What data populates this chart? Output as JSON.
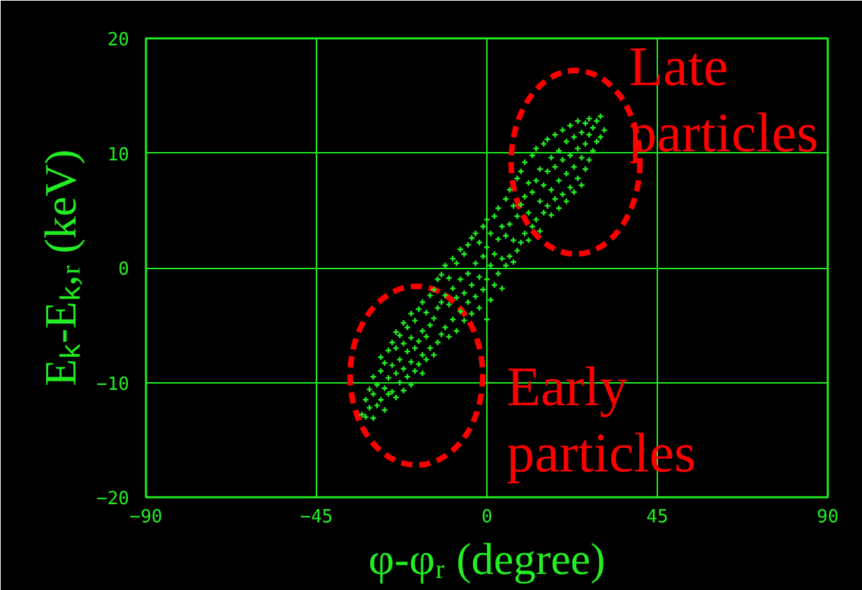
{
  "chart_data": {
    "type": "scatter",
    "xlabel": "φ-φᵣ (degree)",
    "ylabel": "Eₖ-Eₖ,ᵣ (keV)",
    "xlim": [
      -90,
      90
    ],
    "ylim": [
      -20,
      20
    ],
    "xticks": [
      -90,
      -45,
      0,
      45,
      90
    ],
    "yticks": [
      -20,
      -10,
      0,
      10,
      20
    ],
    "grid": true,
    "marker": "cross",
    "series": [
      {
        "color": "#22ee22",
        "x": [
          -33,
          -32,
          -32,
          -31,
          -31,
          -30,
          -30,
          -30,
          -29,
          -29,
          -28,
          -28,
          -28,
          -27,
          -27,
          -27,
          -26,
          -26,
          -26,
          -25,
          -25,
          -25,
          -24,
          -24,
          -24,
          -24,
          -23,
          -23,
          -23,
          -22,
          -22,
          -22,
          -22,
          -21,
          -21,
          -21,
          -20,
          -20,
          -20,
          -20,
          -19,
          -19,
          -19,
          -18,
          -18,
          -18,
          -17,
          -17,
          -17,
          -17,
          -16,
          -16,
          -16,
          -15,
          -15,
          -15,
          -14,
          -14,
          -14,
          -13,
          -13,
          -13,
          -12,
          -12,
          -12,
          -11,
          -11,
          -11,
          -10,
          -10,
          -10,
          -9,
          -9,
          -9,
          -8,
          -8,
          -8,
          -7,
          -7,
          -7,
          -6,
          -6,
          -6,
          -5,
          -5,
          -5,
          -4,
          -4,
          -4,
          -3,
          -3,
          -3,
          -2,
          -2,
          -2,
          -1,
          -1,
          -1,
          0,
          0,
          0,
          0,
          1,
          1,
          1,
          2,
          2,
          2,
          3,
          3,
          3,
          4,
          4,
          4,
          5,
          5,
          5,
          6,
          6,
          6,
          7,
          7,
          7,
          8,
          8,
          8,
          9,
          9,
          9,
          10,
          10,
          10,
          11,
          11,
          11,
          12,
          12,
          12,
          13,
          13,
          13,
          14,
          14,
          14,
          15,
          15,
          15,
          16,
          16,
          16,
          17,
          17,
          17,
          18,
          18,
          18,
          19,
          19,
          19,
          20,
          20,
          20,
          21,
          21,
          21,
          22,
          22,
          22,
          23,
          23,
          23,
          24,
          24,
          24,
          25,
          25,
          25,
          26,
          26,
          26,
          27,
          27,
          27,
          28,
          28,
          29,
          29,
          30,
          30,
          31
        ],
        "values": [
          -12.8,
          -13.0,
          -11.5,
          -12.2,
          -10.6,
          -13.1,
          -11.0,
          -9.5,
          -12.0,
          -10.2,
          -11.5,
          -9.0,
          -7.8,
          -12.4,
          -10.5,
          -8.3,
          -11.0,
          -9.6,
          -7.2,
          -10.8,
          -8.5,
          -6.5,
          -11.3,
          -9.2,
          -7.0,
          -5.6,
          -10.0,
          -8.0,
          -5.9,
          -10.7,
          -8.8,
          -6.6,
          -4.8,
          -9.5,
          -7.3,
          -5.2,
          -10.2,
          -8.2,
          -6.1,
          -4.0,
          -9.0,
          -7.0,
          -4.6,
          -8.4,
          -6.4,
          -3.6,
          -9.2,
          -7.6,
          -5.5,
          -3.0,
          -8.0,
          -6.0,
          -3.9,
          -7.0,
          -5.0,
          -2.4,
          -7.6,
          -4.4,
          -1.9,
          -6.5,
          -3.5,
          -1.0,
          -5.8,
          -3.0,
          -0.6,
          -5.2,
          -2.4,
          0.2,
          -6.0,
          -3.2,
          -0.9,
          -4.5,
          -1.8,
          0.8,
          -5.5,
          -2.6,
          0.4,
          -3.8,
          -1.0,
          1.6,
          -4.6,
          -2.2,
          1.2,
          -3.0,
          -0.5,
          2.0,
          -4.0,
          -1.5,
          2.6,
          -2.5,
          0.4,
          3.0,
          -3.5,
          -0.8,
          2.2,
          -1.9,
          1.0,
          3.6,
          -4.5,
          -1.0,
          1.8,
          4.2,
          -2.8,
          0.2,
          3.0,
          -1.5,
          1.2,
          4.5,
          -0.5,
          2.5,
          5.2,
          -1.8,
          0.8,
          3.6,
          0.2,
          2.8,
          6.0,
          1.0,
          3.8,
          6.8,
          0.5,
          2.4,
          5.4,
          1.5,
          4.5,
          7.8,
          2.2,
          5.5,
          8.4,
          3.0,
          6.2,
          9.2,
          2.4,
          4.8,
          7.4,
          3.6,
          6.6,
          9.8,
          4.2,
          7.6,
          10.4,
          3.2,
          5.8,
          8.6,
          4.8,
          7.2,
          10.8,
          5.4,
          8.4,
          11.2,
          4.6,
          6.8,
          9.6,
          6.0,
          8.8,
          11.6,
          5.2,
          7.6,
          10.2,
          6.4,
          9.4,
          12.0,
          5.8,
          8.2,
          11.0,
          7.0,
          9.8,
          12.4,
          6.6,
          8.8,
          11.4,
          7.8,
          10.4,
          12.8,
          7.2,
          9.6,
          11.8,
          8.6,
          10.8,
          12.6,
          9.4,
          11.6,
          13.0,
          10.2,
          12.2,
          11.0,
          12.8,
          11.4,
          13.2,
          12.0
        ]
      }
    ],
    "annotations": [
      "Late particles",
      "Early particles"
    ]
  }
}
